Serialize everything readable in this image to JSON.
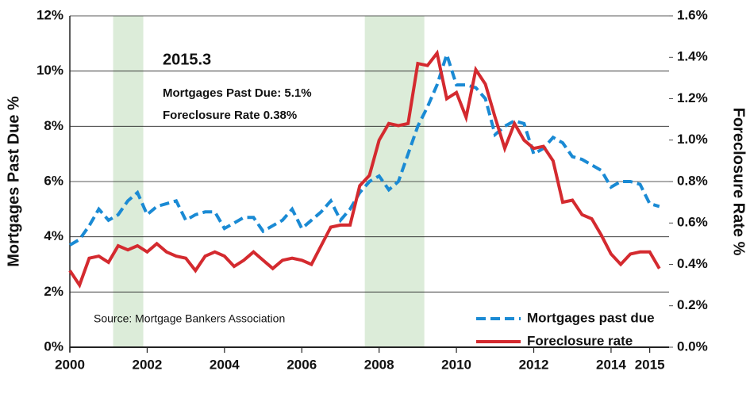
{
  "chart_data": {
    "type": "line",
    "annotations": [
      "2015.3",
      "Mortgages Past Due: 5.1%",
      "Foreclosure Rate 0.38%"
    ],
    "source": "Source: Mortgage Bankers Association",
    "ylabel": "Mortgages Past Due %",
    "y2label": "Foreclosure Rate %",
    "x": [
      2000,
      2000.25,
      2000.5,
      2000.75,
      2001,
      2001.25,
      2001.5,
      2001.75,
      2002,
      2002.25,
      2002.5,
      2002.75,
      2003,
      2003.25,
      2003.5,
      2003.75,
      2004,
      2004.25,
      2004.5,
      2004.75,
      2005,
      2005.25,
      2005.5,
      2005.75,
      2006,
      2006.25,
      2006.5,
      2006.75,
      2007,
      2007.25,
      2007.5,
      2007.75,
      2008,
      2008.25,
      2008.5,
      2008.75,
      2009,
      2009.25,
      2009.5,
      2009.75,
      2010,
      2010.25,
      2010.5,
      2010.75,
      2011,
      2011.25,
      2011.5,
      2011.75,
      2012,
      2012.25,
      2012.5,
      2012.75,
      2013,
      2013.25,
      2013.5,
      2013.75,
      2014,
      2014.25,
      2014.5,
      2014.75,
      2015,
      2015.25
    ],
    "series": [
      {
        "name": "Mortgages past due",
        "color": "#1a8ad4",
        "dashed": true,
        "values": [
          3.7,
          3.9,
          4.4,
          5.0,
          4.6,
          4.8,
          5.3,
          5.6,
          4.8,
          5.1,
          5.2,
          5.3,
          4.6,
          4.8,
          4.9,
          4.9,
          4.3,
          4.5,
          4.7,
          4.7,
          4.2,
          4.4,
          4.6,
          5.0,
          4.3,
          4.6,
          4.9,
          5.3,
          4.6,
          5.0,
          5.6,
          6.0,
          6.2,
          5.7,
          6.0,
          7.0,
          8.0,
          8.7,
          9.5,
          10.6,
          9.5,
          9.5,
          9.4,
          9.0,
          7.7,
          8.0,
          8.2,
          8.1,
          7.0,
          7.2,
          7.6,
          7.4,
          6.9,
          6.8,
          6.6,
          6.4,
          5.8,
          6.0,
          6.0,
          5.9,
          5.2,
          5.1
        ]
      },
      {
        "name": "Foreclosure rate",
        "color": "#d42a2f",
        "axis": "y2",
        "values": [
          0.37,
          0.3,
          0.43,
          0.44,
          0.41,
          0.49,
          0.47,
          0.49,
          0.46,
          0.5,
          0.46,
          0.44,
          0.43,
          0.37,
          0.44,
          0.46,
          0.44,
          0.39,
          0.42,
          0.46,
          0.42,
          0.38,
          0.42,
          0.43,
          0.42,
          0.4,
          0.49,
          0.58,
          0.59,
          0.59,
          0.78,
          0.83,
          1.0,
          1.08,
          1.07,
          1.08,
          1.37,
          1.36,
          1.42,
          1.2,
          1.23,
          1.11,
          1.34,
          1.27,
          1.11,
          0.96,
          1.08,
          1.0,
          0.96,
          0.97,
          0.9,
          0.7,
          0.71,
          0.64,
          0.62,
          0.54,
          0.45,
          0.4,
          0.45,
          0.46,
          0.46,
          0.38
        ]
      }
    ],
    "shaded": [
      [
        2001.12,
        2001.9
      ],
      [
        2007.63,
        2009.17
      ]
    ],
    "shade_color": "#dcecd9",
    "xlim": [
      2000,
      2015.5
    ],
    "xticks": [
      2000,
      2002,
      2004,
      2006,
      2008,
      2010,
      2012,
      2014,
      2015
    ],
    "ylim": [
      0,
      12
    ],
    "yticks": [
      {
        "value": 0,
        "label": "0%"
      },
      {
        "value": 2,
        "label": "2%"
      },
      {
        "value": 4,
        "label": "4%"
      },
      {
        "value": 6,
        "label": "6%"
      },
      {
        "value": 8,
        "label": "8%"
      },
      {
        "value": 10,
        "label": "10%"
      },
      {
        "value": 12,
        "label": "12%"
      }
    ],
    "y2lim": [
      0,
      1.6
    ],
    "y2ticks": [
      {
        "value": 0,
        "label": "0.0%"
      },
      {
        "value": 0.2,
        "label": "0.2%"
      },
      {
        "value": 0.4,
        "label": "0.4%"
      },
      {
        "value": 0.6,
        "label": "0.6%"
      },
      {
        "value": 0.8,
        "label": "0.8%"
      },
      {
        "value": 1.0,
        "label": "1.0%"
      },
      {
        "value": 1.2,
        "label": "1.2%"
      },
      {
        "value": 1.4,
        "label": "1.4%"
      },
      {
        "value": 1.6,
        "label": "1.6%"
      }
    ],
    "grid": true,
    "legend": "lower right"
  }
}
